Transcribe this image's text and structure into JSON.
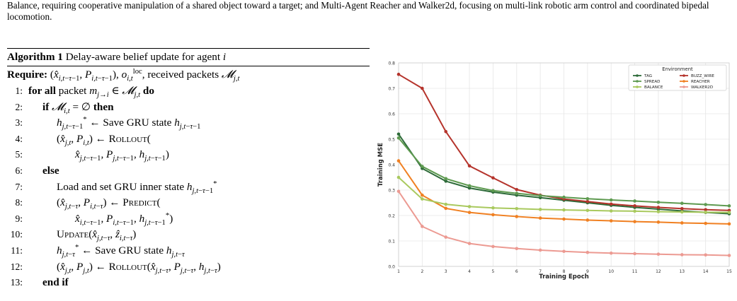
{
  "intro_text": "Balance, requiring cooperative manipulation of a shared object toward a target; and Multi-Agent Reacher and Walker2d, focusing on multi-link robotic arm control and coordinated bipedal locomotion.",
  "algorithm": {
    "label": "Algorithm 1",
    "title": "Delay-aware belief update for agent",
    "agent_var": "i",
    "require_label": "Require:",
    "require_rest": "received packets",
    "lines": [
      {
        "num": "1:",
        "kw1": "for all",
        "text1": "packet",
        "kw2": "do"
      },
      {
        "num": "2:",
        "kw1": "if",
        "kw2": "then"
      },
      {
        "num": "3:",
        "text1": "Save GRU state"
      },
      {
        "num": "4:",
        "fn": "Rollout"
      },
      {
        "num": "5:"
      },
      {
        "num": "6:",
        "kw1": "else"
      },
      {
        "num": "7:",
        "text1": "Load and set GRU inner state"
      },
      {
        "num": "8:",
        "fn": "Predict"
      },
      {
        "num": "9:"
      },
      {
        "num": "10:",
        "fn": "Update"
      },
      {
        "num": "11:",
        "text1": "Save GRU state"
      },
      {
        "num": "12:",
        "fn": "Rollout"
      },
      {
        "num": "13:",
        "kw1": "end if"
      }
    ]
  },
  "chart_data": {
    "type": "line",
    "xlabel": "Training Epoch",
    "ylabel": "Training MSE",
    "xlim": [
      1,
      15
    ],
    "ylim": [
      0.0,
      0.8
    ],
    "x_ticks": [
      1,
      2,
      3,
      4,
      5,
      6,
      7,
      8,
      9,
      10,
      11,
      12,
      13,
      14,
      15
    ],
    "y_ticks": [
      "0.0",
      "0.1",
      "0.2",
      "0.3",
      "0.4",
      "0.5",
      "0.6",
      "0.7",
      "0.8"
    ],
    "grid": true,
    "legend_title": "Environment",
    "legend_position": "top-right",
    "x": [
      1,
      2,
      3,
      4,
      5,
      6,
      7,
      8,
      9,
      10,
      11,
      12,
      13,
      14,
      15
    ],
    "series": [
      {
        "name": "TAG",
        "color": "#2e6b3a",
        "values": [
          0.52,
          0.385,
          0.335,
          0.308,
          0.292,
          0.28,
          0.27,
          0.26,
          0.25,
          0.24,
          0.232,
          0.225,
          0.218,
          0.212,
          0.207
        ]
      },
      {
        "name": "BUZZ_WIRE",
        "color": "#b5342c",
        "values": [
          0.755,
          0.7,
          0.53,
          0.395,
          0.348,
          0.302,
          0.28,
          0.265,
          0.255,
          0.245,
          0.238,
          0.232,
          0.227,
          0.223,
          0.22
        ]
      },
      {
        "name": "SPREAD",
        "color": "#5e9a50",
        "values": [
          0.505,
          0.393,
          0.345,
          0.317,
          0.298,
          0.287,
          0.278,
          0.272,
          0.266,
          0.261,
          0.257,
          0.252,
          0.248,
          0.243,
          0.238
        ]
      },
      {
        "name": "REACHER",
        "color": "#f08022",
        "values": [
          0.415,
          0.28,
          0.228,
          0.212,
          0.203,
          0.196,
          0.19,
          0.186,
          0.182,
          0.179,
          0.176,
          0.174,
          0.171,
          0.169,
          0.167
        ]
      },
      {
        "name": "BALANCE",
        "color": "#a9c95e",
        "values": [
          0.35,
          0.265,
          0.244,
          0.235,
          0.23,
          0.227,
          0.224,
          0.222,
          0.22,
          0.218,
          0.217,
          0.215,
          0.214,
          0.213,
          0.212
        ]
      },
      {
        "name": "WALKER2D",
        "color": "#ec9a92",
        "values": [
          0.295,
          0.157,
          0.115,
          0.09,
          0.078,
          0.07,
          0.064,
          0.059,
          0.055,
          0.052,
          0.05,
          0.048,
          0.046,
          0.045,
          0.043
        ]
      }
    ]
  }
}
